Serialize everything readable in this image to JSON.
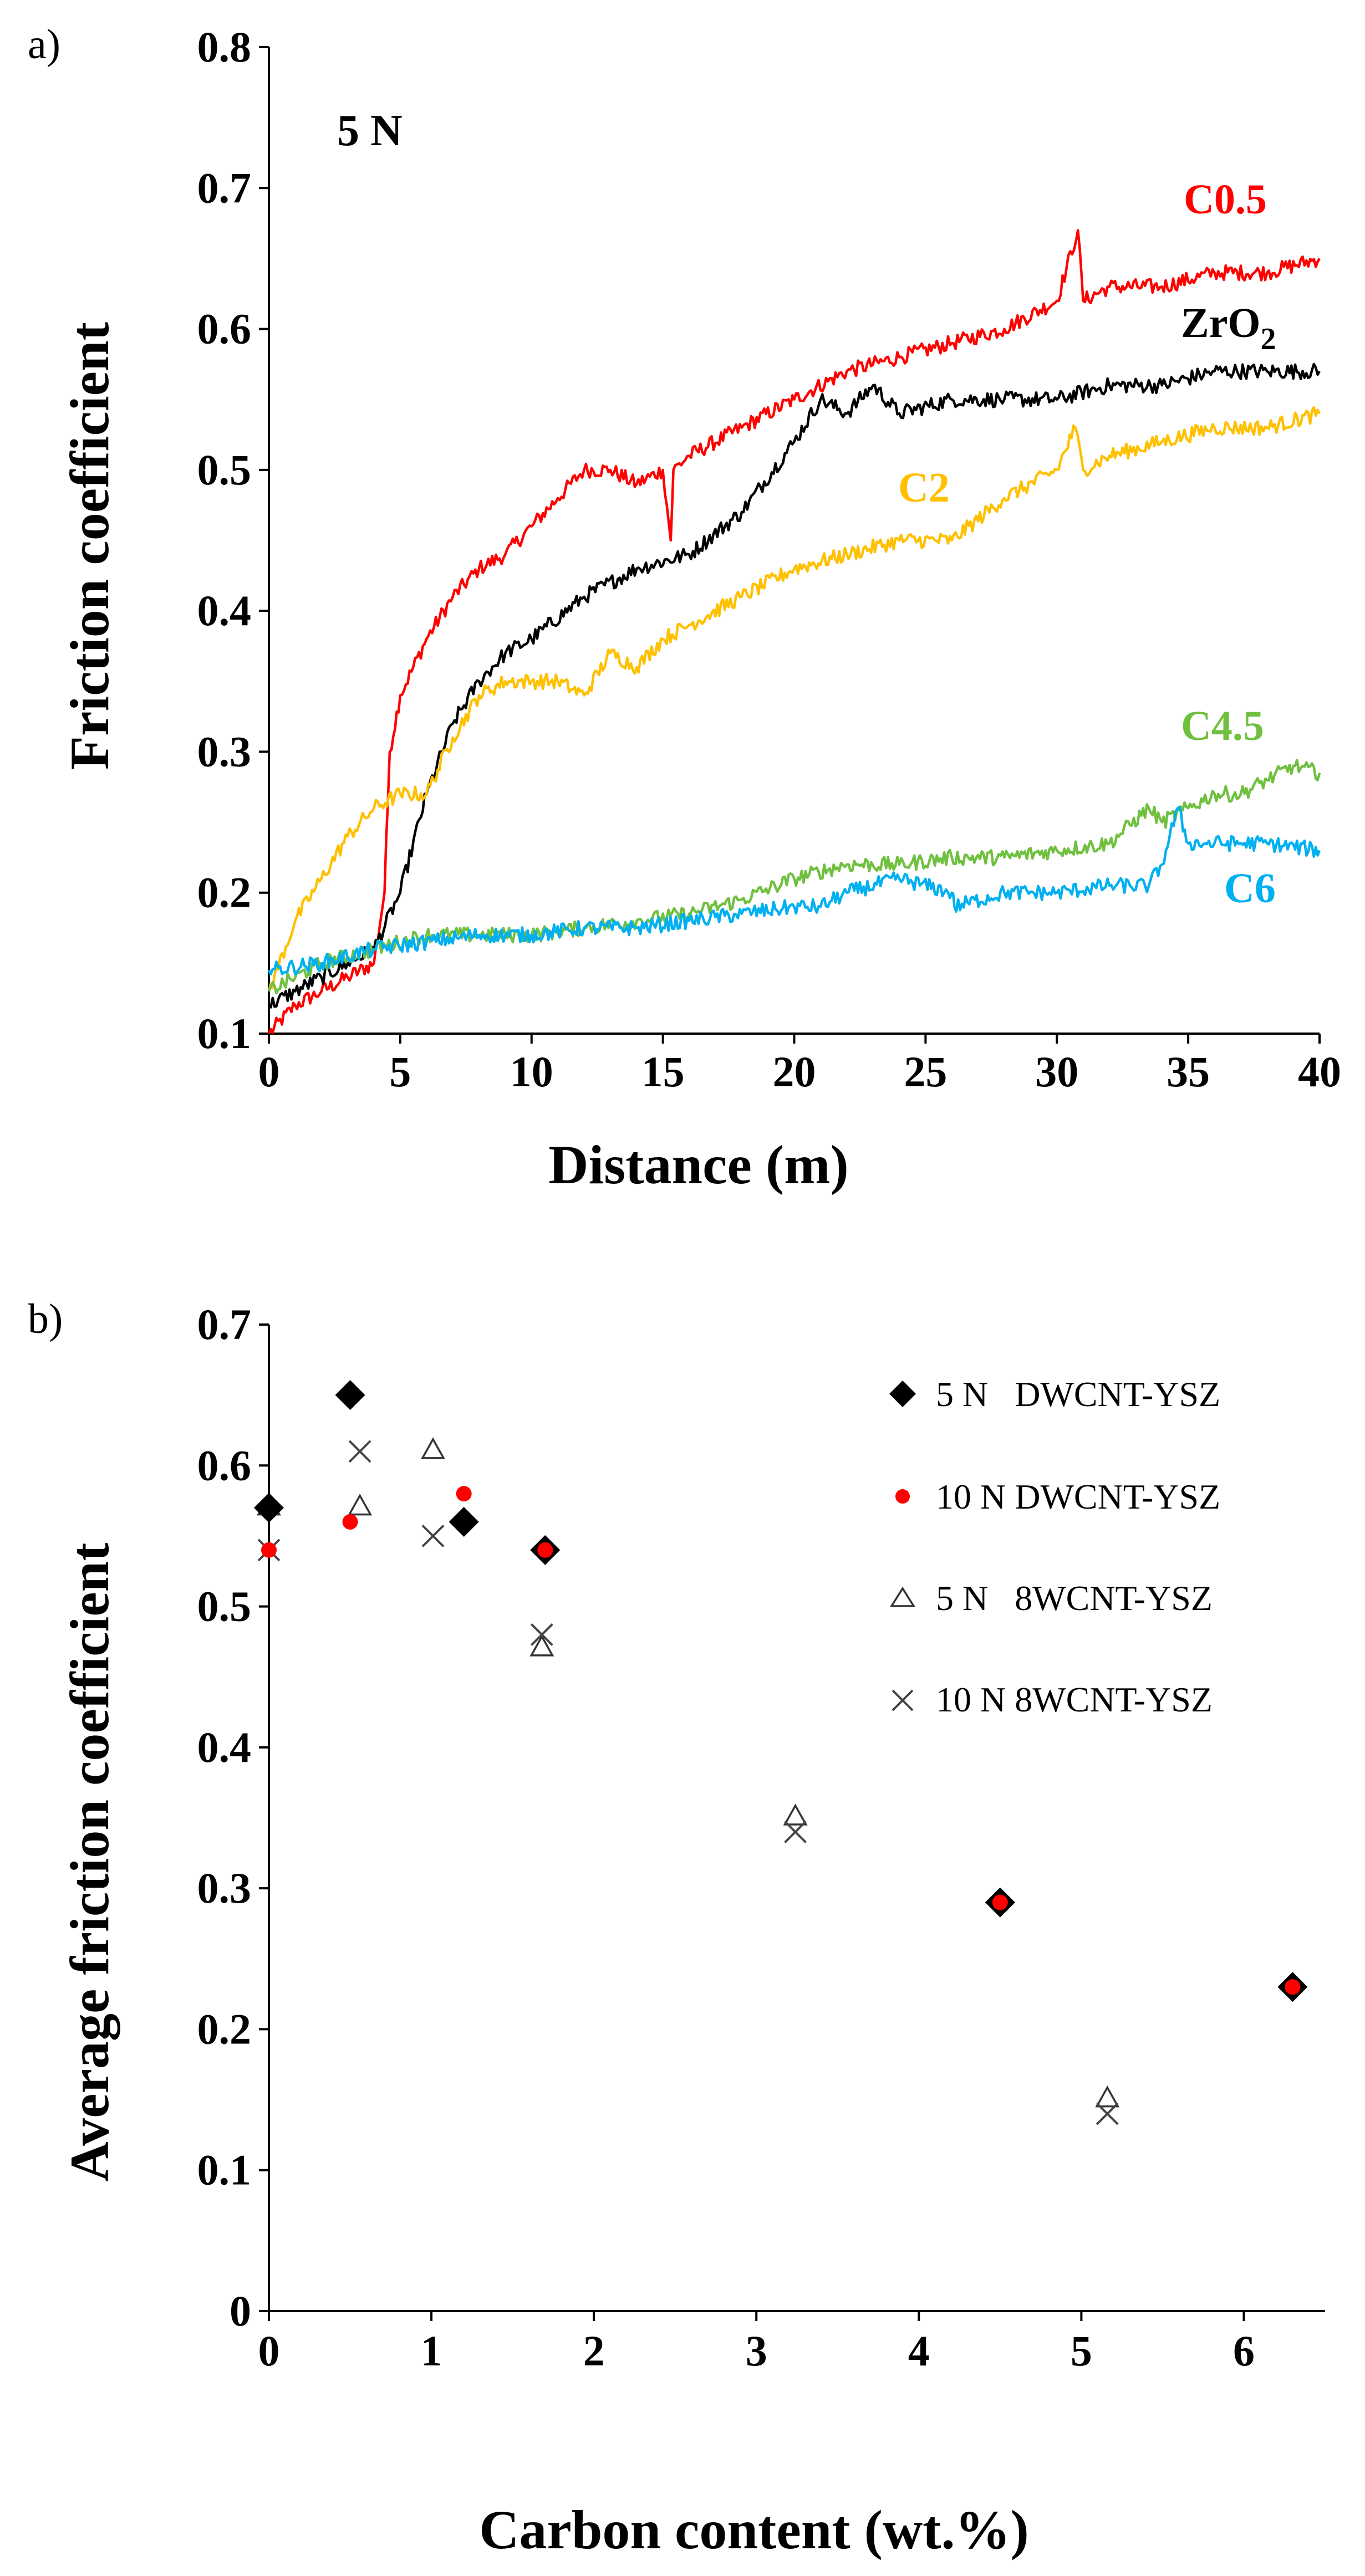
{
  "chart_data": [
    {
      "type": "line",
      "panel_label": "a)",
      "annotation": "5 N",
      "xlabel": "Distance (m)",
      "ylabel": "Friction coefficient",
      "xlim": [
        0,
        40
      ],
      "ylim": [
        0.1,
        0.8
      ],
      "x_ticks": [
        "0",
        "5",
        "10",
        "15",
        "20",
        "25",
        "30",
        "35",
        "40"
      ],
      "y_ticks": [
        "0.1",
        "0.2",
        "0.3",
        "0.4",
        "0.5",
        "0.6",
        "0.7",
        "0.8"
      ],
      "series": [
        {
          "name": "C0.5",
          "color": "#ff0000",
          "x": [
            0,
            1,
            2,
            3,
            4,
            4.4,
            4.6,
            5,
            6,
            7,
            8,
            9,
            10,
            11,
            12,
            13,
            14,
            15,
            15.3,
            15.4,
            16,
            18,
            20,
            22,
            24,
            26,
            28,
            30,
            30.8,
            31,
            32,
            34,
            36,
            38,
            40
          ],
          "y": [
            0.1,
            0.12,
            0.13,
            0.14,
            0.15,
            0.2,
            0.3,
            0.34,
            0.38,
            0.41,
            0.43,
            0.44,
            0.46,
            0.48,
            0.5,
            0.5,
            0.49,
            0.5,
            0.45,
            0.5,
            0.51,
            0.53,
            0.55,
            0.57,
            0.58,
            0.59,
            0.6,
            0.62,
            0.67,
            0.62,
            0.63,
            0.63,
            0.64,
            0.64,
            0.65
          ]
        },
        {
          "name": "ZrO2",
          "color": "#000000",
          "x": [
            0,
            1,
            2,
            3,
            4,
            5,
            6,
            7,
            8,
            9,
            10,
            12,
            14,
            16,
            18,
            20,
            21,
            22,
            23,
            24,
            26,
            28,
            30,
            32,
            34,
            36,
            38,
            40
          ],
          "y": [
            0.12,
            0.13,
            0.14,
            0.15,
            0.16,
            0.2,
            0.27,
            0.32,
            0.35,
            0.37,
            0.38,
            0.41,
            0.43,
            0.44,
            0.47,
            0.52,
            0.55,
            0.54,
            0.56,
            0.54,
            0.55,
            0.55,
            0.55,
            0.56,
            0.56,
            0.57,
            0.57,
            0.57
          ]
        },
        {
          "name": "C2",
          "color": "#ffc000",
          "x": [
            0,
            1,
            2,
            3,
            4,
            5,
            6,
            7,
            8,
            9,
            10,
            11,
            12,
            13,
            14,
            15,
            16,
            18,
            20,
            22,
            24,
            26,
            28,
            30,
            30.7,
            31,
            32,
            34,
            36,
            38,
            40
          ],
          "y": [
            0.13,
            0.18,
            0.21,
            0.24,
            0.26,
            0.27,
            0.27,
            0.31,
            0.34,
            0.35,
            0.35,
            0.35,
            0.34,
            0.37,
            0.36,
            0.38,
            0.39,
            0.41,
            0.43,
            0.44,
            0.45,
            0.45,
            0.48,
            0.5,
            0.53,
            0.5,
            0.51,
            0.52,
            0.53,
            0.53,
            0.54
          ]
        },
        {
          "name": "C4.5",
          "color": "#70c040",
          "x": [
            0,
            2,
            4,
            6,
            8,
            10,
            12,
            14,
            16,
            18,
            20,
            22,
            24,
            26,
            28,
            30,
            32,
            33.5,
            34,
            35,
            36,
            37,
            38,
            39,
            40
          ],
          "y": [
            0.13,
            0.15,
            0.16,
            0.17,
            0.17,
            0.17,
            0.175,
            0.18,
            0.185,
            0.195,
            0.21,
            0.22,
            0.22,
            0.225,
            0.225,
            0.23,
            0.235,
            0.26,
            0.25,
            0.26,
            0.27,
            0.27,
            0.28,
            0.29,
            0.285
          ]
        },
        {
          "name": "C6",
          "color": "#00b0f0",
          "x": [
            0,
            2,
            4,
            6,
            8,
            10,
            12,
            14,
            16,
            18,
            20,
            21,
            22,
            24,
            26,
            26.1,
            28,
            30,
            32,
            33.5,
            34,
            34.6,
            35,
            36,
            38,
            40
          ],
          "y": [
            0.145,
            0.15,
            0.16,
            0.165,
            0.17,
            0.17,
            0.175,
            0.175,
            0.18,
            0.185,
            0.19,
            0.19,
            0.2,
            0.21,
            0.2,
            0.19,
            0.2,
            0.2,
            0.205,
            0.205,
            0.22,
            0.26,
            0.235,
            0.235,
            0.235,
            0.23
          ]
        }
      ]
    },
    {
      "type": "scatter",
      "panel_label": "b)",
      "xlabel": "Carbon content (wt.%)",
      "ylabel": "Average friction coefficient",
      "xlim": [
        0,
        6.5
      ],
      "ylim": [
        0,
        0.7
      ],
      "x_ticks": [
        "0",
        "1",
        "2",
        "3",
        "4",
        "5",
        "6"
      ],
      "y_ticks": [
        "0",
        "0.1",
        "0.2",
        "0.3",
        "0.4",
        "0.5",
        "0.6",
        "0.7"
      ],
      "series": [
        {
          "name": "5 N   DWCNT-YSZ",
          "marker": "diamond",
          "x": [
            0,
            0.5,
            1.2,
            1.7,
            4.5,
            6.3
          ],
          "y": [
            0.57,
            0.65,
            0.56,
            0.54,
            0.29,
            0.23
          ]
        },
        {
          "name": "10 N DWCNT-YSZ",
          "marker": "dot",
          "x": [
            0,
            0.5,
            1.2,
            1.7,
            4.5,
            6.3
          ],
          "y": [
            0.54,
            0.56,
            0.58,
            0.54,
            0.29,
            0.23
          ]
        },
        {
          "name": "5 N   8WCNT-YSZ",
          "marker": "triangle",
          "x": [
            0,
            0.56,
            1.01,
            1.68,
            3.24,
            5.16
          ],
          "y": [
            0.57,
            0.57,
            0.61,
            0.47,
            0.35,
            0.15
          ]
        },
        {
          "name": "10 N 8WCNT-YSZ",
          "marker": "cross",
          "x": [
            0,
            0.56,
            1.01,
            1.68,
            3.24,
            5.16
          ],
          "y": [
            0.54,
            0.61,
            0.55,
            0.48,
            0.34,
            0.14
          ]
        }
      ]
    }
  ]
}
